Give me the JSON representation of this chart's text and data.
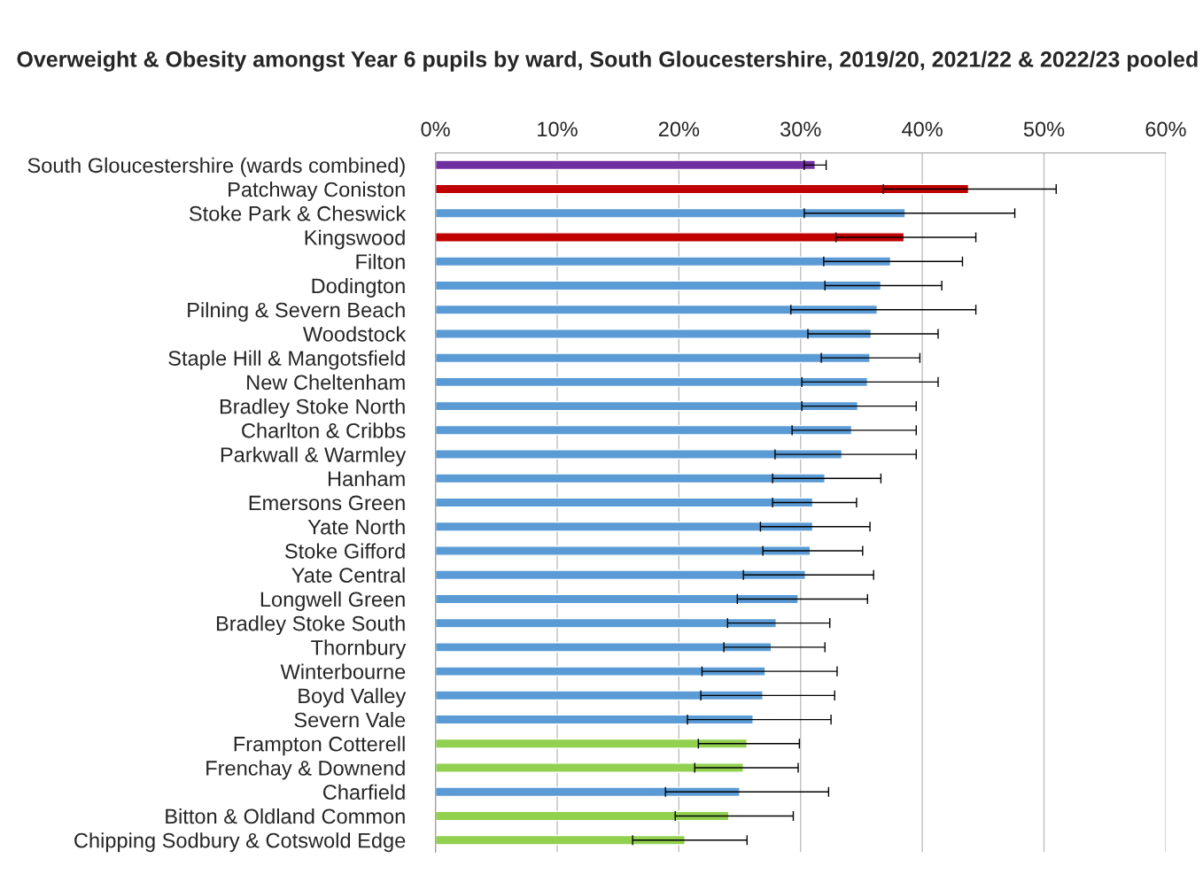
{
  "chart_data": {
    "type": "bar",
    "orientation": "horizontal",
    "title": "Overweight & Obesity amongst Year 6 pupils by ward, South Gloucestershire, 2019/20, 2021/22 & 2022/23 pooled",
    "categories": [
      "South Gloucestershire (wards combined)",
      "Patchway Coniston",
      "Stoke Park & Cheswick",
      "Kingswood",
      "Filton",
      "Dodington",
      "Pilning & Severn Beach",
      "Woodstock",
      "Staple Hill & Mangotsfield",
      "New Cheltenham",
      "Bradley Stoke North",
      "Charlton & Cribbs",
      "Parkwall & Warmley",
      "Hanham",
      "Emersons Green",
      "Yate North",
      "Stoke Gifford",
      "Yate Central",
      "Longwell Green",
      "Bradley Stoke South",
      "Thornbury",
      "Winterbourne",
      "Boyd Valley",
      "Severn Vale",
      "Frampton Cotterell",
      "Frenchay & Downend",
      "Charfield",
      "Bitton & Oldland Common",
      "Chipping Sodbury & Cotswold Edge"
    ],
    "values": [
      31.2,
      43.8,
      38.6,
      38.5,
      37.4,
      36.6,
      36.3,
      35.8,
      35.7,
      35.5,
      34.7,
      34.2,
      33.4,
      32.0,
      31.0,
      31.0,
      30.8,
      30.4,
      29.8,
      28.0,
      27.6,
      27.1,
      26.9,
      26.1,
      25.6,
      25.3,
      25.0,
      24.1,
      20.5
    ],
    "errors": [
      [
        30.3,
        32.1
      ],
      [
        36.8,
        51.0
      ],
      [
        30.3,
        47.6
      ],
      [
        32.9,
        44.4
      ],
      [
        31.9,
        43.3
      ],
      [
        32.0,
        41.6
      ],
      [
        29.2,
        44.4
      ],
      [
        30.6,
        41.3
      ],
      [
        31.7,
        39.8
      ],
      [
        30.1,
        41.3
      ],
      [
        30.1,
        39.5
      ],
      [
        29.3,
        39.5
      ],
      [
        27.9,
        39.5
      ],
      [
        27.7,
        36.6
      ],
      [
        27.7,
        34.6
      ],
      [
        26.7,
        35.7
      ],
      [
        26.9,
        35.1
      ],
      [
        25.3,
        36.0
      ],
      [
        24.8,
        35.5
      ],
      [
        24.0,
        32.4
      ],
      [
        23.7,
        32.0
      ],
      [
        21.9,
        33.0
      ],
      [
        21.8,
        32.8
      ],
      [
        20.7,
        32.5
      ],
      [
        21.6,
        29.9
      ],
      [
        21.3,
        29.8
      ],
      [
        18.9,
        32.3
      ],
      [
        19.7,
        29.4
      ],
      [
        16.2,
        25.6
      ]
    ],
    "colors": [
      "#7030a0",
      "#c00000",
      "#5b9bd5",
      "#c00000",
      "#5b9bd5",
      "#5b9bd5",
      "#5b9bd5",
      "#5b9bd5",
      "#5b9bd5",
      "#5b9bd5",
      "#5b9bd5",
      "#5b9bd5",
      "#5b9bd5",
      "#5b9bd5",
      "#5b9bd5",
      "#5b9bd5",
      "#5b9bd5",
      "#5b9bd5",
      "#5b9bd5",
      "#5b9bd5",
      "#5b9bd5",
      "#5b9bd5",
      "#5b9bd5",
      "#5b9bd5",
      "#92d050",
      "#92d050",
      "#5b9bd5",
      "#92d050",
      "#92d050"
    ],
    "xlim": [
      0,
      60
    ],
    "xticks": [
      {
        "value": 0,
        "label": "0%"
      },
      {
        "value": 10,
        "label": "10%"
      },
      {
        "value": 20,
        "label": "20%"
      },
      {
        "value": 30,
        "label": "30%"
      },
      {
        "value": 40,
        "label": "40%"
      },
      {
        "value": 50,
        "label": "50%"
      },
      {
        "value": 60,
        "label": "60%"
      }
    ],
    "grid": "x",
    "legend": false
  }
}
